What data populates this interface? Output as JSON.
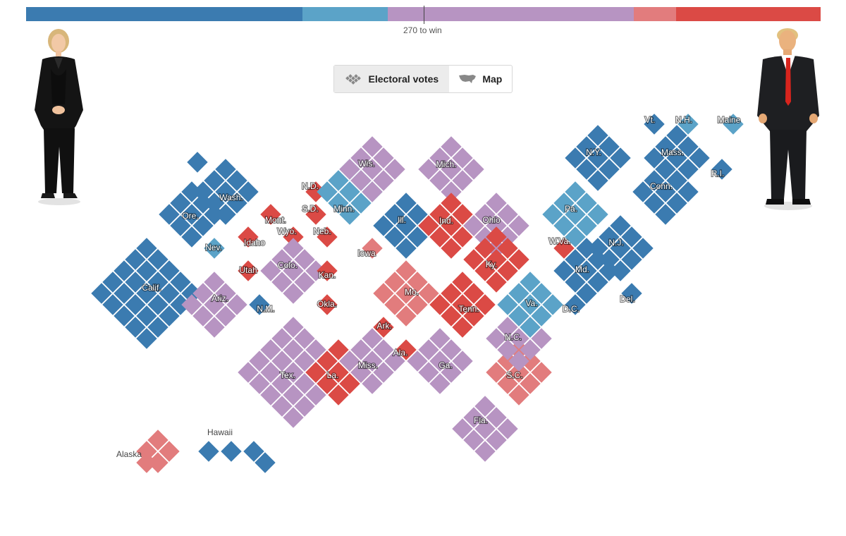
{
  "colors": {
    "safe_dem": "#3b7bb0",
    "lean_dem": "#5ba3c8",
    "tossup": "#b794c2",
    "lean_rep": "#e27c7d",
    "safe_rep": "#db4a45"
  },
  "progress_bar": {
    "segments": [
      {
        "category": "safe_dem",
        "fraction": 0.348
      },
      {
        "category": "lean_dem",
        "fraction": 0.107
      },
      {
        "category": "tossup",
        "fraction": 0.31
      },
      {
        "category": "lean_rep",
        "fraction": 0.053
      },
      {
        "category": "safe_rep",
        "fraction": 0.182
      }
    ],
    "win_label": "270 to win"
  },
  "toggle": {
    "electoral_votes_label": "Electoral votes",
    "map_label": "Map",
    "electoral_votes_icon": "cartogram-icon",
    "map_icon": "us-map-icon"
  },
  "candidates": {
    "left_icon": "candidate-left-figure",
    "right_icon": "candidate-right-figure"
  },
  "states": [
    {
      "label": "Wash.",
      "category": "safe_dem"
    },
    {
      "label": "Ore.",
      "category": "safe_dem"
    },
    {
      "label": "Calif.",
      "category": "safe_dem"
    },
    {
      "label": "Nev.",
      "category": "lean_dem"
    },
    {
      "label": "Idaho",
      "category": "safe_rep"
    },
    {
      "label": "Mont.",
      "category": "safe_rep"
    },
    {
      "label": "Wyo.",
      "category": "safe_rep"
    },
    {
      "label": "Utah",
      "category": "safe_rep"
    },
    {
      "label": "Ariz.",
      "category": "tossup"
    },
    {
      "label": "Colo.",
      "category": "tossup"
    },
    {
      "label": "N.M.",
      "category": "safe_dem"
    },
    {
      "label": "N.D.",
      "category": "safe_rep"
    },
    {
      "label": "S.D.",
      "category": "safe_rep"
    },
    {
      "label": "Neb.",
      "category": "safe_rep"
    },
    {
      "label": "Kan.",
      "category": "safe_rep"
    },
    {
      "label": "Okla.",
      "category": "safe_rep"
    },
    {
      "label": "Tex.",
      "category": "tossup"
    },
    {
      "label": "Minn.",
      "category": "lean_dem"
    },
    {
      "label": "Iowa",
      "category": "lean_rep"
    },
    {
      "label": "Mo.",
      "category": "lean_rep"
    },
    {
      "label": "Ark.",
      "category": "safe_rep"
    },
    {
      "label": "La.",
      "category": "safe_rep"
    },
    {
      "label": "Wis.",
      "category": "tossup"
    },
    {
      "label": "Ill.",
      "category": "safe_dem"
    },
    {
      "label": "Mich.",
      "category": "tossup"
    },
    {
      "label": "Ind.",
      "category": "safe_rep"
    },
    {
      "label": "Ohio",
      "category": "tossup"
    },
    {
      "label": "Ky.",
      "category": "safe_rep"
    },
    {
      "label": "Tenn.",
      "category": "safe_rep"
    },
    {
      "label": "Miss.",
      "category": "tossup"
    },
    {
      "label": "Ala.",
      "category": "safe_rep"
    },
    {
      "label": "Ga.",
      "category": "tossup"
    },
    {
      "label": "Fla.",
      "category": "tossup"
    },
    {
      "label": "S.C.",
      "category": "lean_rep"
    },
    {
      "label": "N.C.",
      "category": "tossup"
    },
    {
      "label": "Va.",
      "category": "lean_dem"
    },
    {
      "label": "W.Va.",
      "category": "safe_rep"
    },
    {
      "label": "Pa.",
      "category": "lean_dem"
    },
    {
      "label": "N.Y.",
      "category": "safe_dem"
    },
    {
      "label": "N.J.",
      "category": "safe_dem"
    },
    {
      "label": "Md.",
      "category": "safe_dem"
    },
    {
      "label": "Del.",
      "category": "safe_dem"
    },
    {
      "label": "D.C.",
      "category": "safe_dem"
    },
    {
      "label": "Conn.",
      "category": "safe_dem"
    },
    {
      "label": "R.I.",
      "category": "safe_dem"
    },
    {
      "label": "Mass.",
      "category": "safe_dem"
    },
    {
      "label": "Vt.",
      "category": "safe_dem"
    },
    {
      "label": "N.H.",
      "category": "lean_dem"
    },
    {
      "label": "Maine",
      "category": "lean_dem"
    },
    {
      "label": "Alaska",
      "category": "lean_rep"
    },
    {
      "label": "Hawaii",
      "category": "safe_dem"
    }
  ]
}
